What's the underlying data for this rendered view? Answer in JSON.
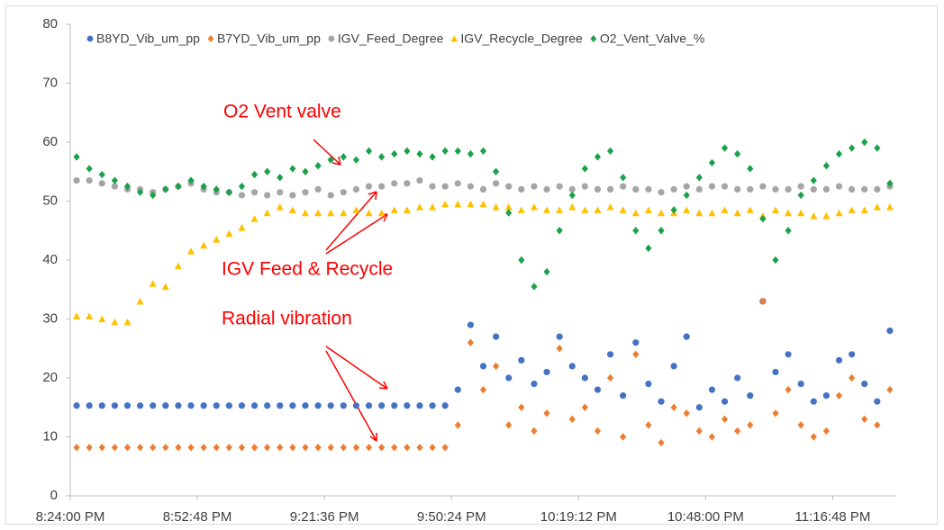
{
  "chart_data": {
    "type": "scatter",
    "x": [
      0.851,
      0.853,
      0.855,
      0.857,
      0.859,
      0.861,
      0.863,
      0.865,
      0.867,
      0.869,
      0.871,
      0.873,
      0.875,
      0.877,
      0.879,
      0.881,
      0.883,
      0.885,
      0.887,
      0.889,
      0.891,
      0.893,
      0.895,
      0.897,
      0.899,
      0.901,
      0.903,
      0.905,
      0.907,
      0.909,
      0.911,
      0.913,
      0.915,
      0.917,
      0.919,
      0.921,
      0.923,
      0.925,
      0.927,
      0.929,
      0.931,
      0.933,
      0.935,
      0.937,
      0.939,
      0.941,
      0.943,
      0.945,
      0.947,
      0.949,
      0.951,
      0.953,
      0.955,
      0.957,
      0.959,
      0.961,
      0.963,
      0.965,
      0.967,
      0.969,
      0.971,
      0.973,
      0.975,
      0.977,
      0.979
    ],
    "series": [
      {
        "name": "B8YD_Vib_um_pp",
        "color": "#4472c4",
        "marker": "circle",
        "values": [
          15.3,
          15.3,
          15.3,
          15.3,
          15.3,
          15.3,
          15.3,
          15.3,
          15.3,
          15.3,
          15.3,
          15.3,
          15.3,
          15.3,
          15.3,
          15.3,
          15.3,
          15.3,
          15.3,
          15.3,
          15.3,
          15.3,
          15.3,
          15.3,
          15.3,
          15.3,
          15.3,
          15.3,
          15.3,
          15.3,
          18,
          29,
          22,
          27,
          20,
          23,
          19,
          21,
          27,
          22,
          20,
          18,
          24,
          17,
          26,
          19,
          16,
          22,
          27,
          15,
          18,
          16,
          20,
          17,
          33,
          21,
          24,
          19,
          16,
          17,
          23,
          24,
          19,
          16,
          28
        ]
      },
      {
        "name": "B7YD_Vib_um_pp",
        "color": "#ed7d31",
        "marker": "diamond",
        "values": [
          8.2,
          8.2,
          8.2,
          8.2,
          8.2,
          8.2,
          8.2,
          8.2,
          8.2,
          8.2,
          8.2,
          8.2,
          8.2,
          8.2,
          8.2,
          8.2,
          8.2,
          8.2,
          8.2,
          8.2,
          8.2,
          8.2,
          8.2,
          8.2,
          8.2,
          8.2,
          8.2,
          8.2,
          8.2,
          8.2,
          12,
          26,
          18,
          22,
          12,
          15,
          11,
          14,
          25,
          13,
          15,
          11,
          20,
          10,
          24,
          12,
          9,
          15,
          14,
          11,
          10,
          13,
          11,
          12,
          33,
          14,
          18,
          12,
          10,
          11,
          17,
          20,
          13,
          12,
          18
        ]
      },
      {
        "name": "IGV_Feed_Degree",
        "color": "#a5a5a5",
        "marker": "circle",
        "values": [
          53.5,
          53.5,
          53,
          52.5,
          52,
          52,
          51.5,
          52,
          52.5,
          53,
          52,
          51.5,
          51.5,
          51,
          51.5,
          51,
          51.5,
          51,
          51.5,
          52,
          51,
          51.5,
          52,
          52.5,
          52.5,
          53,
          53,
          53.5,
          52.5,
          52.5,
          53,
          52.5,
          52,
          53,
          52.5,
          52,
          52.5,
          52,
          52.5,
          52,
          52.5,
          52,
          52,
          52.5,
          52,
          52,
          51.5,
          52,
          52.5,
          52,
          52.5,
          52.5,
          52,
          52,
          52.5,
          52,
          52,
          52.5,
          52,
          52,
          52.5,
          52,
          52,
          52,
          52.5
        ]
      },
      {
        "name": "IGV_Recycle_Degree",
        "color": "#ffc000",
        "marker": "triangle",
        "values": [
          30.5,
          30.5,
          30,
          29.5,
          29.5,
          33,
          36,
          35.5,
          39,
          41.5,
          42.5,
          43.5,
          44.5,
          45.5,
          47,
          48,
          49,
          48.5,
          48,
          48,
          48,
          48,
          48.5,
          48,
          48,
          48.5,
          48.5,
          49,
          49,
          49.5,
          49.5,
          49.5,
          49.5,
          49,
          49,
          48.5,
          49,
          48.5,
          48.5,
          49,
          48.5,
          48.5,
          49,
          48.5,
          48,
          48.5,
          48,
          48,
          48.5,
          48,
          48,
          48.5,
          48,
          48.5,
          47.5,
          48.5,
          48,
          48,
          47.5,
          47.5,
          48,
          48.5,
          48.5,
          49,
          49
        ]
      },
      {
        "name": "O2_Vent_Valve_%",
        "color": "#1aa14a",
        "marker": "diamond",
        "values": [
          57.5,
          55.5,
          54.5,
          53.5,
          52.5,
          51.5,
          51,
          52,
          52.5,
          53.5,
          52.5,
          52,
          51.5,
          52.5,
          54.5,
          55,
          54,
          55.5,
          55,
          56,
          57,
          57.5,
          57,
          58.5,
          57.5,
          58,
          58.5,
          58,
          57.5,
          58.5,
          58.5,
          58,
          58.5,
          55,
          48,
          40,
          35.5,
          38,
          45,
          51,
          55.5,
          57.5,
          58.5,
          54,
          45,
          42,
          45,
          48.5,
          51,
          54,
          56.5,
          59,
          58,
          55.5,
          47,
          40,
          45,
          51,
          53.5,
          56,
          58,
          59,
          60,
          59,
          53
        ]
      }
    ],
    "xlim": [
      0.85,
      0.98
    ],
    "xticks": [
      {
        "value": 0.85,
        "label": "8:24:00 PM"
      },
      {
        "value": 0.87,
        "label": "8:52:48 PM"
      },
      {
        "value": 0.89,
        "label": "9:21:36 PM"
      },
      {
        "value": 0.91,
        "label": "9:50:24 PM"
      },
      {
        "value": 0.93,
        "label": "10:19:12 PM"
      },
      {
        "value": 0.95,
        "label": "10:48:00 PM"
      },
      {
        "value": 0.97,
        "label": "11:16:48 PM"
      }
    ],
    "ylim": [
      0,
      80
    ],
    "yticks": [
      0,
      10,
      20,
      30,
      40,
      50,
      60,
      70,
      80
    ],
    "legend": "top",
    "annotations": [
      "O2 Vent valve",
      "IGV Feed & Recycle",
      "Radial vibration"
    ]
  }
}
